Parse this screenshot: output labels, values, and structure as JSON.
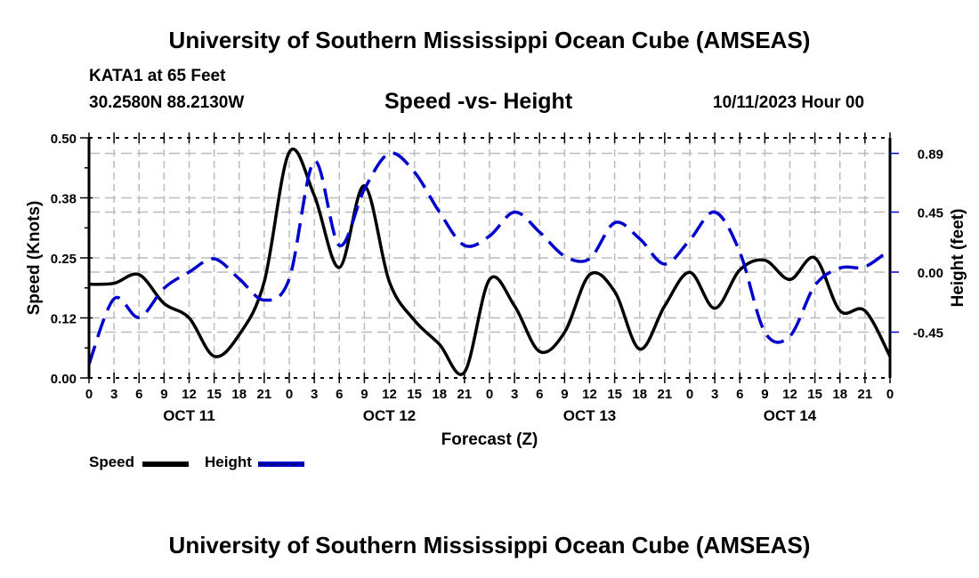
{
  "header": {
    "title": "University of Southern Mississippi Ocean Cube (AMSEAS)",
    "station": "KATA1 at 65 Feet",
    "coordinates": "30.2580N  88.2130W",
    "subtitle": "Speed -vs- Height",
    "datetime": "10/11/2023 Hour 00"
  },
  "footer": {
    "title": "University of Southern Mississippi Ocean Cube (AMSEAS)"
  },
  "chart_data": {
    "type": "line",
    "title": "Speed -vs- Height",
    "xlabel": "Forecast (Z)",
    "ylabel": "Speed (Knots)",
    "y2label": "Height (feet)",
    "xlim": [
      0,
      96
    ],
    "ylim": [
      0,
      0.5
    ],
    "y2lim": [
      -0.89,
      0.89
    ],
    "grid": true,
    "legend_position": "bottom-left",
    "x_tick_labels": [
      "0",
      "3",
      "6",
      "9",
      "12",
      "15",
      "18",
      "21",
      "0",
      "3",
      "6",
      "9",
      "12",
      "15",
      "18",
      "21",
      "0",
      "3",
      "6",
      "9",
      "12",
      "15",
      "18",
      "21",
      "0",
      "3",
      "6",
      "9",
      "12",
      "15",
      "18",
      "21",
      "0"
    ],
    "day_labels": [
      {
        "label": "OCT 11",
        "hour": 12
      },
      {
        "label": "OCT 12",
        "hour": 36
      },
      {
        "label": "OCT 13",
        "hour": 60
      },
      {
        "label": "OCT 14",
        "hour": 84
      }
    ],
    "y_tick_labels": [
      "0.00",
      "0.12",
      "0.25",
      "0.38",
      "0.50"
    ],
    "y_ticks": [
      0,
      0.125,
      0.25,
      0.375,
      0.5
    ],
    "y2_tick_labels": [
      "0.89",
      "0.45",
      "0.00",
      "-0.45"
    ],
    "y2_ticks": [
      0.89,
      0.45,
      0.0,
      -0.45
    ],
    "x": [
      0,
      3,
      6,
      9,
      12,
      15,
      18,
      21,
      24,
      27,
      30,
      33,
      36,
      39,
      42,
      45,
      48,
      51,
      54,
      57,
      60,
      63,
      66,
      69,
      72,
      75,
      78,
      81,
      84,
      87,
      90,
      93,
      96
    ],
    "series": [
      {
        "name": "Speed",
        "axis": "left",
        "color": "#000000",
        "style": "solid",
        "values": [
          0.195,
          0.197,
          0.215,
          0.155,
          0.125,
          0.045,
          0.09,
          0.2,
          0.47,
          0.38,
          0.23,
          0.4,
          0.2,
          0.12,
          0.07,
          0.012,
          0.205,
          0.15,
          0.055,
          0.095,
          0.215,
          0.18,
          0.06,
          0.15,
          0.22,
          0.145,
          0.225,
          0.245,
          0.205,
          0.25,
          0.14,
          0.14,
          0.045
        ]
      },
      {
        "name": "Height",
        "axis": "right",
        "color": "#0000cc",
        "style": "dashed",
        "values": [
          -0.69,
          -0.2,
          -0.34,
          -0.12,
          0.0,
          0.1,
          -0.05,
          -0.21,
          -0.05,
          0.83,
          0.2,
          0.62,
          0.89,
          0.75,
          0.45,
          0.2,
          0.27,
          0.45,
          0.3,
          0.12,
          0.1,
          0.37,
          0.25,
          0.06,
          0.24,
          0.45,
          0.15,
          -0.45,
          -0.48,
          -0.1,
          0.03,
          0.04,
          0.17
        ]
      }
    ]
  }
}
